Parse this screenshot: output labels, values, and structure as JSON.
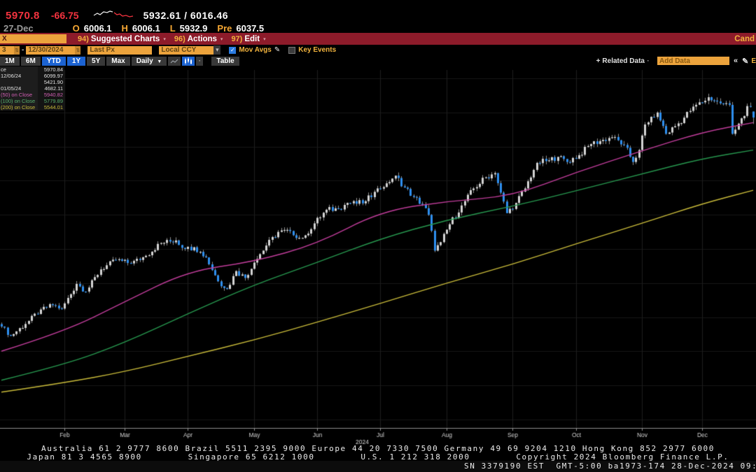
{
  "quote": {
    "last": "5970.8",
    "change": "-66.75",
    "range": "5932.61 / 6016.46"
  },
  "ohlc": {
    "date": "27-Dec",
    "o_label": "O",
    "o": "6006.1",
    "h_label": "H",
    "h": "6006.1",
    "l_label": "L",
    "l": "5932.9",
    "pre_label": "Pre",
    "pre": "6037.5"
  },
  "menu_bar": {
    "ticker": "X",
    "items": [
      {
        "num": "94)",
        "label": "Suggested Charts"
      },
      {
        "num": "96)",
        "label": "Actions"
      },
      {
        "num": "97)",
        "label": "Edit"
      }
    ],
    "right_truncated": "Cand"
  },
  "controls": {
    "date_from": "3",
    "range_separator": "-",
    "date_to": "12/30/2024",
    "price_field": "Last Px",
    "currency": "Local CCY",
    "mov_avgs_label": "Mov Avgs",
    "mov_avgs_checked": true,
    "key_events_label": "Key Events",
    "key_events_checked": false
  },
  "tabs": {
    "periods": [
      {
        "label": "1M",
        "active": false
      },
      {
        "label": "6M",
        "active": false
      },
      {
        "label": "YTD",
        "active": true
      },
      {
        "label": "1Y",
        "active": true
      },
      {
        "label": "5Y",
        "active": false
      },
      {
        "label": "Max",
        "active": false
      }
    ],
    "frequency": "Daily",
    "table": "Table",
    "related_data": "Related Data",
    "add_data": "Add Data",
    "edit_truncated": "E"
  },
  "icons": {
    "caret_down_small": "▾",
    "caret_down": "▼",
    "pencil": "✎",
    "check": "✓",
    "double_chevron_left": "«",
    "plus": "+",
    "spinner": "⇅",
    "dot": "·"
  },
  "legend": {
    "rows": [
      {
        "label": "ce",
        "value": "5970.84",
        "color": "#e2e2e2"
      },
      {
        "label": "12/06/24",
        "value": "6099.97",
        "color": "#e2e2e2"
      },
      {
        "label": "",
        "value": "5421.90",
        "color": "#e2e2e2"
      },
      {
        "label": "01/05/24",
        "value": "4682.11",
        "color": "#e2e2e2"
      },
      {
        "label": "(50) on Close",
        "value": "5940.82",
        "color": "#d25fb4"
      },
      {
        "label": "(100) on Close",
        "value": "5779.89",
        "color": "#57b06d"
      },
      {
        "label": "(200) on Close",
        "value": "5544.01",
        "color": "#c9bb3a"
      }
    ]
  },
  "chart_data": {
    "type": "candlestick",
    "title": "Equity index daily candles, YTD 2024 with 50/100/200-day moving averages",
    "ylim": [
      4150,
      6250
    ],
    "total_days": 250,
    "months": {
      "labels": [
        "Feb",
        "Mar",
        "Apr",
        "May",
        "Jun",
        "Jul",
        "Aug",
        "Sep",
        "Oct",
        "Nov",
        "Dec"
      ],
      "days": [
        21,
        41,
        62,
        84,
        105,
        126,
        148,
        170,
        191,
        213,
        233
      ]
    },
    "year": {
      "label": "2024",
      "day": 120
    },
    "close_keyframes": [
      [
        0,
        4745
      ],
      [
        3,
        4690
      ],
      [
        8,
        4760
      ],
      [
        13,
        4845
      ],
      [
        17,
        4870
      ],
      [
        20,
        4850
      ],
      [
        25,
        4995
      ],
      [
        28,
        4950
      ],
      [
        33,
        5080
      ],
      [
        38,
        5135
      ],
      [
        43,
        5115
      ],
      [
        48,
        5160
      ],
      [
        53,
        5235
      ],
      [
        58,
        5250
      ],
      [
        61,
        5200
      ],
      [
        64,
        5210
      ],
      [
        68,
        5150
      ],
      [
        72,
        5010
      ],
      [
        75,
        4965
      ],
      [
        78,
        5070
      ],
      [
        81,
        5030
      ],
      [
        84,
        5120
      ],
      [
        88,
        5220
      ],
      [
        92,
        5300
      ],
      [
        96,
        5305
      ],
      [
        99,
        5265
      ],
      [
        101,
        5280
      ],
      [
        104,
        5350
      ],
      [
        108,
        5430
      ],
      [
        112,
        5435
      ],
      [
        115,
        5470
      ],
      [
        118,
        5465
      ],
      [
        121,
        5480
      ],
      [
        124,
        5535
      ],
      [
        128,
        5585
      ],
      [
        131,
        5630
      ],
      [
        134,
        5560
      ],
      [
        137,
        5505
      ],
      [
        140,
        5460
      ],
      [
        142,
        5400
      ],
      [
        144,
        5190
      ],
      [
        146,
        5240
      ],
      [
        149,
        5345
      ],
      [
        153,
        5455
      ],
      [
        157,
        5555
      ],
      [
        161,
        5620
      ],
      [
        164,
        5645
      ],
      [
        166,
        5530
      ],
      [
        168,
        5410
      ],
      [
        171,
        5470
      ],
      [
        174,
        5555
      ],
      [
        178,
        5705
      ],
      [
        182,
        5720
      ],
      [
        185,
        5740
      ],
      [
        188,
        5710
      ],
      [
        192,
        5750
      ],
      [
        196,
        5815
      ],
      [
        200,
        5840
      ],
      [
        203,
        5855
      ],
      [
        207,
        5810
      ],
      [
        210,
        5710
      ],
      [
        212,
        5780
      ],
      [
        214,
        5930
      ],
      [
        216,
        5975
      ],
      [
        218,
        6000
      ],
      [
        221,
        5875
      ],
      [
        224,
        5920
      ],
      [
        227,
        5970
      ],
      [
        230,
        6035
      ],
      [
        233,
        6060
      ],
      [
        235,
        6090
      ],
      [
        238,
        6065
      ],
      [
        240,
        6050
      ],
      [
        242,
        6045
      ],
      [
        243,
        5875
      ],
      [
        245,
        5935
      ],
      [
        247,
        5980
      ],
      [
        248,
        6038
      ],
      [
        249,
        6037
      ],
      [
        250,
        5970.8
      ]
    ],
    "last_candle": {
      "o": 6006.1,
      "h": 6006.1,
      "l": 5932.9,
      "c": 5970.8
    },
    "high_of_year": {
      "date": "12/06/24",
      "value": 6099.97
    },
    "low_of_year": {
      "date": "01/05/24",
      "value": 4682.11
    },
    "average": 5421.9,
    "ma_series": [
      {
        "name": "SMAVG(50) on Close",
        "color": "#c23d9c",
        "points": [
          [
            0,
            4600
          ],
          [
            21,
            4715
          ],
          [
            41,
            4890
          ],
          [
            62,
            5070
          ],
          [
            84,
            5125
          ],
          [
            105,
            5230
          ],
          [
            126,
            5420
          ],
          [
            148,
            5480
          ],
          [
            170,
            5510
          ],
          [
            191,
            5650
          ],
          [
            213,
            5775
          ],
          [
            233,
            5885
          ],
          [
            250,
            5940.8
          ]
        ]
      },
      {
        "name": "SMAVG(100) on Close",
        "color": "#27984f",
        "points": [
          [
            0,
            4430
          ],
          [
            21,
            4520
          ],
          [
            41,
            4650
          ],
          [
            62,
            4820
          ],
          [
            84,
            4990
          ],
          [
            105,
            5120
          ],
          [
            126,
            5260
          ],
          [
            148,
            5370
          ],
          [
            170,
            5450
          ],
          [
            191,
            5540
          ],
          [
            213,
            5640
          ],
          [
            233,
            5730
          ],
          [
            250,
            5779.9
          ]
        ]
      },
      {
        "name": "SMAVG(200) on Close",
        "color": "#c9bb3a",
        "points": [
          [
            0,
            4360
          ],
          [
            21,
            4415
          ],
          [
            41,
            4480
          ],
          [
            62,
            4570
          ],
          [
            84,
            4665
          ],
          [
            105,
            4770
          ],
          [
            126,
            4880
          ],
          [
            148,
            5000
          ],
          [
            170,
            5110
          ],
          [
            191,
            5230
          ],
          [
            213,
            5350
          ],
          [
            233,
            5465
          ],
          [
            250,
            5544
          ]
        ]
      }
    ],
    "colors": {
      "up": "#d4d4d4",
      "down": "#2e8fef",
      "wick": "#909090",
      "grid_v": "#1e1e1e",
      "grid_h": "#171717",
      "axis": "#8f8f8f",
      "axis_label": "#cfcfcf"
    }
  },
  "footer": {
    "line1": "Australia 61 2 9777 8600 Brazil 5511 2395 9000 Europe 44 20 7330 7500 Germany 49 69 9204 1210 Hong Kong 852 2977 6000",
    "line2": "Japan 81 3 4565 8900        Singapore 65 6212 1000        U.S. 1 212 318 2000        Copyright 2024 Bloomberg Finance L.P.",
    "status": "SN 3379190 EST  GMT-5:00 ba1973-174 28-Dec-2024 09:"
  }
}
